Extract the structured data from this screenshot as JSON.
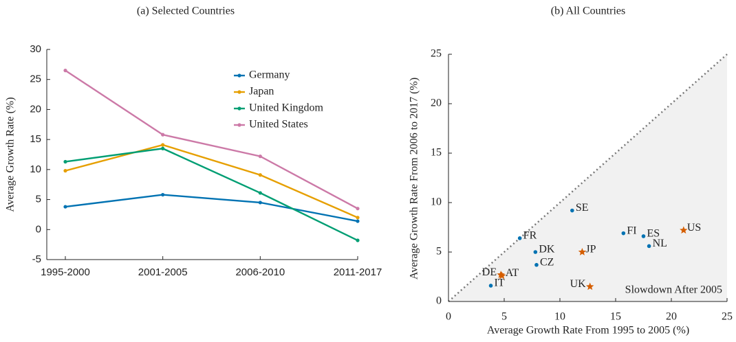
{
  "chart_data": [
    {
      "type": "line",
      "title": "(a) Selected Countries",
      "ylabel": "Average Growth Rate (%)",
      "categories": [
        "1995-2000",
        "2001-2005",
        "2006-2010",
        "2011-2017"
      ],
      "series": [
        {
          "name": "Germany",
          "color": "#0072b2",
          "values": [
            3.8,
            5.8,
            4.5,
            1.4
          ]
        },
        {
          "name": "Japan",
          "color": "#e69f00",
          "values": [
            9.8,
            14.1,
            9.1,
            2.0
          ]
        },
        {
          "name": "United Kingdom",
          "color": "#009e73",
          "values": [
            11.3,
            13.5,
            6.1,
            -1.8
          ]
        },
        {
          "name": "United States",
          "color": "#cc79a7",
          "values": [
            26.5,
            15.8,
            12.2,
            3.5
          ]
        }
      ],
      "ylim": [
        -5,
        30
      ],
      "yticks": [
        -5,
        0,
        5,
        10,
        15,
        20,
        25,
        30
      ],
      "legend": "upper right"
    },
    {
      "type": "scatter",
      "title": "(b) All Countries",
      "xlabel": "Average Growth Rate From 1995 to 2005 (%)",
      "ylabel": "Average Growth Rate From 2006 to 2017 (%)",
      "annotation": "Slowdown After 2005",
      "series": [
        {
          "color": "#0072b2",
          "marker": "circle",
          "labels": [
            "SE",
            "FR",
            "DK",
            "CZ",
            "IT",
            "FI",
            "ES",
            "NL"
          ],
          "x": [
            11.1,
            6.4,
            7.8,
            7.9,
            3.8,
            15.7,
            17.5,
            18.0
          ],
          "y": [
            9.2,
            6.4,
            5.0,
            3.7,
            1.6,
            6.9,
            6.6,
            5.6
          ]
        },
        {
          "color": "#d55e00",
          "marker": "star",
          "labels": [
            "US",
            "JP",
            "UK",
            "DE",
            "AT"
          ],
          "x": [
            21.1,
            12.0,
            12.7,
            4.7,
            4.8
          ],
          "y": [
            7.2,
            5.0,
            1.5,
            2.7,
            2.6
          ]
        }
      ],
      "xlim": [
        0,
        25
      ],
      "ylim": [
        0,
        25
      ],
      "xticks": [
        0,
        5,
        10,
        15,
        20,
        25
      ],
      "yticks": [
        0,
        5,
        10,
        15,
        20,
        25
      ]
    }
  ]
}
